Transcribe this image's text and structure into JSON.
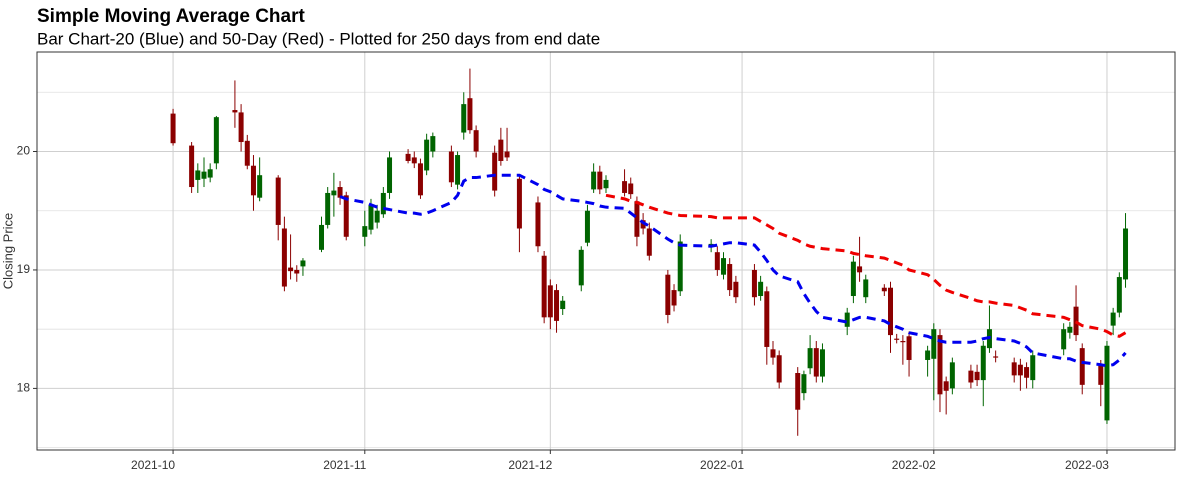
{
  "chart_data": {
    "type": "candlestick",
    "title": "Simple Moving Average Chart",
    "subtitle": "Bar Chart-20 (Blue) and 50-Day (Red) - Plotted for 250 days from end date",
    "y_label": "Closing Price",
    "up_color": "#006400",
    "down_color": "#8b0000",
    "grid": true,
    "xlim": [
      "2021-09-09",
      "2022-03-12"
    ],
    "xticks": [
      {
        "value": "2021-10-01",
        "label": "2021-10"
      },
      {
        "value": "2021-11-01",
        "label": "2021-11"
      },
      {
        "value": "2021-12-01",
        "label": "2021-12"
      },
      {
        "value": "2022-01-01",
        "label": "2022-01"
      },
      {
        "value": "2022-02-01",
        "label": "2022-02"
      },
      {
        "value": "2022-03-01",
        "label": "2022-03"
      }
    ],
    "ylim": [
      17.48,
      20.84
    ],
    "yticks": [
      18,
      19,
      20
    ],
    "x": [
      "2021-10-01",
      "2021-10-04",
      "2021-10-05",
      "2021-10-06",
      "2021-10-07",
      "2021-10-08",
      "2021-10-11",
      "2021-10-12",
      "2021-10-13",
      "2021-10-14",
      "2021-10-15",
      "2021-10-18",
      "2021-10-19",
      "2021-10-20",
      "2021-10-21",
      "2021-10-22",
      "2021-10-25",
      "2021-10-26",
      "2021-10-27",
      "2021-10-28",
      "2021-10-29",
      "2021-11-01",
      "2021-11-02",
      "2021-11-03",
      "2021-11-04",
      "2021-11-05",
      "2021-11-08",
      "2021-11-09",
      "2021-11-10",
      "2021-11-11",
      "2021-11-12",
      "2021-11-15",
      "2021-11-16",
      "2021-11-17",
      "2021-11-18",
      "2021-11-19",
      "2021-11-22",
      "2021-11-23",
      "2021-11-24",
      "2021-11-26",
      "2021-11-29",
      "2021-11-30",
      "2021-12-01",
      "2021-12-02",
      "2021-12-03",
      "2021-12-06",
      "2021-12-07",
      "2021-12-08",
      "2021-12-09",
      "2021-12-10",
      "2021-12-13",
      "2021-12-14",
      "2021-12-15",
      "2021-12-16",
      "2021-12-17",
      "2021-12-20",
      "2021-12-21",
      "2021-12-22",
      "2021-12-27",
      "2021-12-28",
      "2021-12-29",
      "2021-12-30",
      "2021-12-31",
      "2022-01-03",
      "2022-01-04",
      "2022-01-05",
      "2022-01-06",
      "2022-01-07",
      "2022-01-10",
      "2022-01-11",
      "2022-01-12",
      "2022-01-13",
      "2022-01-14",
      "2022-01-18",
      "2022-01-19",
      "2022-01-20",
      "2022-01-21",
      "2022-01-24",
      "2022-01-25",
      "2022-01-26",
      "2022-01-27",
      "2022-01-28",
      "2022-01-31",
      "2022-02-01",
      "2022-02-02",
      "2022-02-03",
      "2022-02-04",
      "2022-02-07",
      "2022-02-08",
      "2022-02-09",
      "2022-02-10",
      "2022-02-11",
      "2022-02-14",
      "2022-02-15",
      "2022-02-16",
      "2022-02-17",
      "2022-02-22",
      "2022-02-23",
      "2022-02-24",
      "2022-02-25",
      "2022-02-28",
      "2022-03-01",
      "2022-03-02",
      "2022-03-03",
      "2022-03-04"
    ],
    "open": [
      20.32,
      20.05,
      19.76,
      19.77,
      19.78,
      19.9,
      20.35,
      20.33,
      20.09,
      19.88,
      19.61,
      19.78,
      19.35,
      19.02,
      19.0,
      19.03,
      19.17,
      19.38,
      19.63,
      19.7,
      19.63,
      19.28,
      19.34,
      19.4,
      19.47,
      19.65,
      19.98,
      19.95,
      19.9,
      19.84,
      20.0,
      20.0,
      19.72,
      20.16,
      20.45,
      20.18,
      19.99,
      20.1,
      20.0,
      19.77,
      19.57,
      19.12,
      18.87,
      18.83,
      18.67,
      18.87,
      19.23,
      19.68,
      19.83,
      19.69,
      19.75,
      19.73,
      19.58,
      19.42,
      19.35,
      18.96,
      18.83,
      18.82,
      19.2,
      19.15,
      18.96,
      19.05,
      18.9,
      19.0,
      18.78,
      18.82,
      18.33,
      18.28,
      18.13,
      17.96,
      18.17,
      18.34,
      18.1,
      18.52,
      18.78,
      19.03,
      18.77,
      18.85,
      18.85,
      18.42,
      18.4,
      18.44,
      18.24,
      18.25,
      18.45,
      18.06,
      18.0,
      18.15,
      18.14,
      18.07,
      18.34,
      18.27,
      18.22,
      18.2,
      18.18,
      18.07,
      18.33,
      18.47,
      18.69,
      18.34,
      18.19,
      17.73,
      18.53,
      18.64,
      18.92
    ],
    "high": [
      20.36,
      20.08,
      19.9,
      19.95,
      19.9,
      20.3,
      20.6,
      20.4,
      20.14,
      19.97,
      19.95,
      19.8,
      19.45,
      19.3,
      19.04,
      19.1,
      19.45,
      19.7,
      19.82,
      19.75,
      19.66,
      19.5,
      19.6,
      19.55,
      19.7,
      20.0,
      20.02,
      20.0,
      19.94,
      20.15,
      20.16,
      20.05,
      20.0,
      20.5,
      20.7,
      20.22,
      20.05,
      20.2,
      20.2,
      19.8,
      19.62,
      19.16,
      18.92,
      18.88,
      18.78,
      19.2,
      19.55,
      19.9,
      19.88,
      19.8,
      19.85,
      19.78,
      19.62,
      19.48,
      19.4,
      19.0,
      18.88,
      19.3,
      19.26,
      19.2,
      19.15,
      19.1,
      18.95,
      19.05,
      18.95,
      18.86,
      18.4,
      18.32,
      18.18,
      18.15,
      18.45,
      18.4,
      18.38,
      18.68,
      19.12,
      19.28,
      18.96,
      18.88,
      18.9,
      18.46,
      18.45,
      18.48,
      18.36,
      18.55,
      18.5,
      18.1,
      18.26,
      18.2,
      18.2,
      18.4,
      18.7,
      18.32,
      18.26,
      18.25,
      18.22,
      18.32,
      18.55,
      18.56,
      18.87,
      18.38,
      18.24,
      18.4,
      18.68,
      18.98,
      19.48
    ],
    "low": [
      20.05,
      19.65,
      19.65,
      19.7,
      19.74,
      19.85,
      20.2,
      20.0,
      19.85,
      19.5,
      19.58,
      19.25,
      18.82,
      18.92,
      18.9,
      18.95,
      19.15,
      19.35,
      19.45,
      19.55,
      19.25,
      19.2,
      19.3,
      19.35,
      19.44,
      19.6,
      19.9,
      19.86,
      19.6,
      19.8,
      19.95,
      19.7,
      19.68,
      20.1,
      20.15,
      19.95,
      19.62,
      19.88,
      19.92,
      19.15,
      19.15,
      18.55,
      18.5,
      18.47,
      18.62,
      18.82,
      19.2,
      19.65,
      19.64,
      19.65,
      19.62,
      19.6,
      19.2,
      19.3,
      19.08,
      18.55,
      18.65,
      18.78,
      19.15,
      18.95,
      18.92,
      18.78,
      18.72,
      18.7,
      18.74,
      18.2,
      18.2,
      18.0,
      17.6,
      17.9,
      18.12,
      18.05,
      18.05,
      18.45,
      18.72,
      18.9,
      18.72,
      18.78,
      18.3,
      18.38,
      18.2,
      18.1,
      18.1,
      17.9,
      17.8,
      17.78,
      17.95,
      18.0,
      18.02,
      17.85,
      18.3,
      18.22,
      18.05,
      17.98,
      18.0,
      18.0,
      18.28,
      18.42,
      18.4,
      17.95,
      17.85,
      17.7,
      18.45,
      18.6,
      18.85
    ],
    "close": [
      20.07,
      19.7,
      19.84,
      19.83,
      19.85,
      20.29,
      20.33,
      20.08,
      19.88,
      19.63,
      19.8,
      19.38,
      18.86,
      18.99,
      18.97,
      19.08,
      19.38,
      19.65,
      19.67,
      19.61,
      19.28,
      19.37,
      19.55,
      19.5,
      19.65,
      19.95,
      19.92,
      19.9,
      19.63,
      20.1,
      20.13,
      19.74,
      19.97,
      20.4,
      20.18,
      20.0,
      19.67,
      19.92,
      19.95,
      19.35,
      19.2,
      18.6,
      18.6,
      18.57,
      18.74,
      19.17,
      19.5,
      19.83,
      19.68,
      19.76,
      19.65,
      19.64,
      19.28,
      19.35,
      19.12,
      18.62,
      18.7,
      19.24,
      19.22,
      19.0,
      19.1,
      18.83,
      18.77,
      18.77,
      18.9,
      18.35,
      18.26,
      18.05,
      17.82,
      18.12,
      18.34,
      18.1,
      18.33,
      18.64,
      19.07,
      18.98,
      18.92,
      18.82,
      18.45,
      18.41,
      18.39,
      18.24,
      18.32,
      18.5,
      17.95,
      17.98,
      18.22,
      18.05,
      18.07,
      18.36,
      18.5,
      18.26,
      18.11,
      18.11,
      18.09,
      18.28,
      18.5,
      18.52,
      18.45,
      18.03,
      18.03,
      18.36,
      18.64,
      18.94,
      19.35
    ],
    "overlays": [
      {
        "type": "line",
        "color": "#0000ee",
        "dashed": true,
        "values": [
          null,
          null,
          null,
          null,
          null,
          null,
          null,
          null,
          null,
          null,
          null,
          null,
          null,
          null,
          null,
          null,
          null,
          null,
          null,
          19.62,
          19.6,
          19.57,
          19.55,
          19.53,
          19.52,
          19.51,
          19.48,
          19.48,
          19.47,
          19.48,
          19.5,
          19.57,
          19.63,
          19.75,
          19.78,
          19.78,
          19.8,
          19.8,
          19.8,
          19.8,
          19.72,
          19.68,
          19.66,
          19.63,
          19.6,
          19.58,
          19.57,
          19.56,
          19.54,
          19.53,
          19.52,
          19.48,
          19.44,
          19.4,
          19.37,
          19.26,
          19.23,
          19.21,
          19.2,
          19.21,
          19.22,
          19.23,
          19.23,
          19.21,
          19.15,
          19.08,
          19.0,
          18.95,
          18.9,
          18.8,
          18.72,
          18.65,
          18.6,
          18.56,
          18.58,
          18.6,
          18.6,
          18.57,
          18.54,
          18.52,
          18.5,
          18.47,
          18.44,
          18.42,
          18.4,
          18.39,
          18.39,
          18.39,
          18.4,
          18.42,
          18.43,
          18.42,
          18.4,
          18.38,
          18.35,
          18.3,
          18.25,
          18.25,
          18.23,
          18.22,
          18.2,
          18.19,
          18.2,
          18.24,
          18.3
        ]
      },
      {
        "type": "line",
        "color": "#ee0000",
        "dashed": true,
        "values": [
          null,
          null,
          null,
          null,
          null,
          null,
          null,
          null,
          null,
          null,
          null,
          null,
          null,
          null,
          null,
          null,
          null,
          null,
          null,
          null,
          null,
          null,
          null,
          null,
          null,
          null,
          null,
          null,
          null,
          null,
          null,
          null,
          null,
          null,
          null,
          null,
          null,
          null,
          null,
          null,
          null,
          null,
          null,
          null,
          null,
          null,
          null,
          null,
          null,
          19.63,
          19.6,
          19.58,
          19.57,
          19.55,
          19.53,
          19.48,
          19.47,
          19.46,
          19.45,
          19.44,
          19.44,
          19.44,
          19.44,
          19.44,
          19.41,
          19.38,
          19.35,
          19.31,
          19.25,
          19.22,
          19.2,
          19.19,
          19.18,
          19.16,
          19.14,
          19.13,
          19.12,
          19.1,
          19.08,
          19.06,
          19.04,
          19.0,
          18.96,
          18.92,
          18.87,
          18.83,
          18.81,
          18.76,
          18.74,
          18.73,
          18.73,
          18.72,
          18.7,
          18.68,
          18.66,
          18.63,
          18.6,
          18.58,
          18.56,
          18.53,
          18.5,
          18.48,
          18.45,
          18.44,
          18.47
        ]
      }
    ]
  }
}
